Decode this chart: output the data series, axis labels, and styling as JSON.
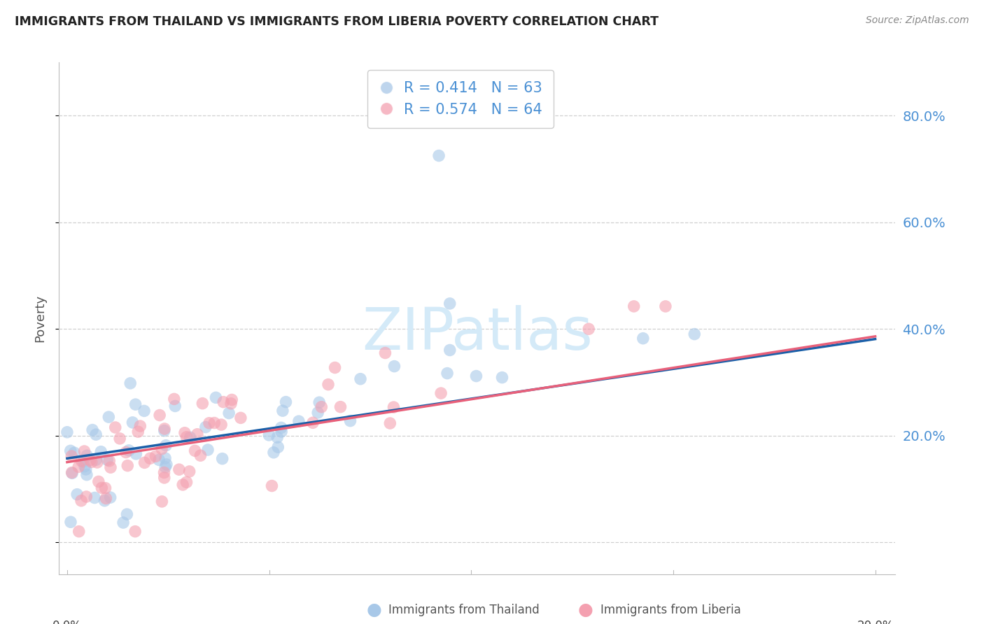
{
  "title": "IMMIGRANTS FROM THAILAND VS IMMIGRANTS FROM LIBERIA POVERTY CORRELATION CHART",
  "source": "Source: ZipAtlas.com",
  "ylabel": "Poverty",
  "r_thailand": 0.414,
  "n_thailand": 63,
  "r_liberia": 0.574,
  "n_liberia": 64,
  "color_thailand": "#a8c8e8",
  "color_liberia": "#f4a0b0",
  "line_color_thailand": "#1a5fa8",
  "line_color_liberia": "#e8607a",
  "right_axis_color": "#4a90d4",
  "ytick_vals": [
    0.0,
    0.2,
    0.4,
    0.6,
    0.8
  ],
  "ytick_labels": [
    "",
    "20.0%",
    "40.0%",
    "60.0%",
    "80.0%"
  ],
  "xlim_low": -0.002,
  "xlim_high": 0.205,
  "ylim_low": -0.06,
  "ylim_high": 0.9,
  "watermark_color": "#d4eaf8",
  "grid_color": "#d0d0d0",
  "spine_color": "#bbbbbb"
}
